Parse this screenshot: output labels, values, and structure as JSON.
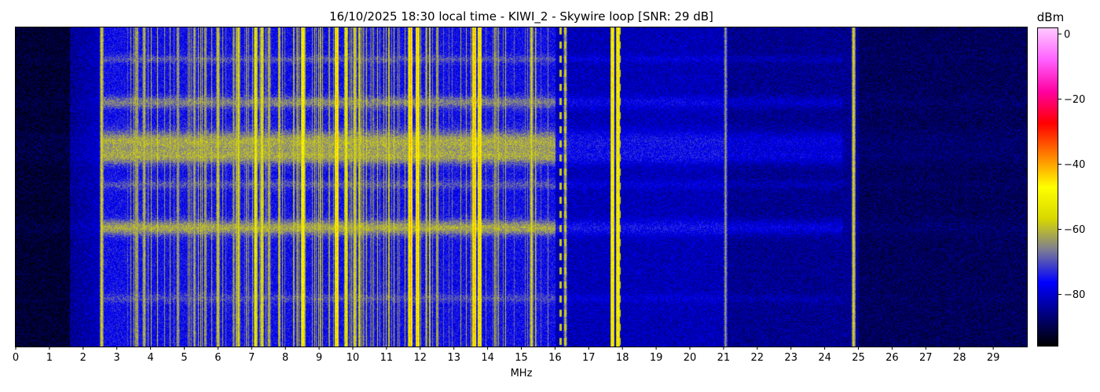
{
  "chart_data": {
    "type": "heatmap",
    "title": "16/10/2025 18:30 local time - KIWI_2 - Skywire loop [SNR: 29 dB]",
    "xlabel": "MHz",
    "xlim": [
      0,
      30
    ],
    "x_ticks": [
      "0",
      "1",
      "2",
      "3",
      "4",
      "5",
      "6",
      "7",
      "8",
      "9",
      "10",
      "11",
      "12",
      "13",
      "14",
      "15",
      "16",
      "17",
      "18",
      "19",
      "20",
      "21",
      "22",
      "23",
      "24",
      "25",
      "26",
      "27",
      "28",
      "29"
    ],
    "colorbar": {
      "label": "dBm",
      "range": [
        -96,
        2
      ],
      "ticks": [
        "0",
        "−20",
        "−40",
        "−60",
        "−80"
      ],
      "tick_values": [
        0,
        -20,
        -40,
        -60,
        -80
      ],
      "colormap": [
        "#000000",
        "#000080",
        "#0000ff",
        "#7a7a96",
        "#d8d800",
        "#ffff00",
        "#ff8000",
        "#ff0000",
        "#ff00a0",
        "#ff60ff",
        "#ffc8ff"
      ]
    },
    "y_axis": "time (unlabeled)",
    "strong_signals_mhz": [
      {
        "f": 2.55,
        "level": -55
      },
      {
        "f": 3.6,
        "level": -60
      },
      {
        "f": 3.8,
        "level": -58
      },
      {
        "f": 4.8,
        "level": -60
      },
      {
        "f": 5.3,
        "level": -60
      },
      {
        "f": 6.0,
        "level": -55
      },
      {
        "f": 6.6,
        "level": -55
      },
      {
        "f": 7.1,
        "level": -50
      },
      {
        "f": 7.3,
        "level": -52
      },
      {
        "f": 7.5,
        "level": -58
      },
      {
        "f": 8.5,
        "level": -45
      },
      {
        "f": 9.5,
        "level": -42
      },
      {
        "f": 9.8,
        "level": -50
      },
      {
        "f": 10.05,
        "level": -55
      },
      {
        "f": 11.7,
        "level": -40
      },
      {
        "f": 11.9,
        "level": -42
      },
      {
        "f": 13.6,
        "level": -40
      },
      {
        "f": 13.75,
        "level": -42
      },
      {
        "f": 15.3,
        "level": -55
      },
      {
        "f": 16.3,
        "level": -60
      },
      {
        "f": 17.7,
        "level": -45
      },
      {
        "f": 17.85,
        "level": -45
      },
      {
        "f": 21.05,
        "level": -62
      },
      {
        "f": 24.85,
        "level": -55
      }
    ],
    "grid": false
  }
}
